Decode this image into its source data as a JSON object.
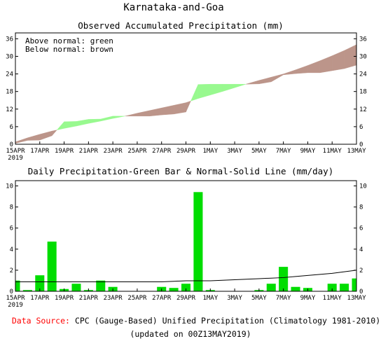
{
  "title": "Karnataka-and-Goa",
  "footer": {
    "source_label": "Data Source:",
    "source_text": "CPC (Gauge-Based) Unified Precipitation (Climatology 1981-2010)",
    "updated": "(updated on 00Z13MAY2019)"
  },
  "colors": {
    "above_normal": "#98f98f",
    "below_normal": "#bc958a",
    "bar": "#00dd00",
    "normal_line": "#000000",
    "source_label": "#ff0000"
  },
  "chart_data": [
    {
      "type": "area",
      "title": "Observed Accumulated Precipitation (mm)",
      "legend": [
        "Above normal: green",
        "Below normal: brown"
      ],
      "legend_placement": "top-left",
      "x": [
        "15APR",
        "16APR",
        "17APR",
        "18APR",
        "19APR",
        "20APR",
        "21APR",
        "22APR",
        "23APR",
        "24APR",
        "25APR",
        "26APR",
        "27APR",
        "28APR",
        "29APR",
        "30APR",
        "1MAY",
        "2MAY",
        "3MAY",
        "4MAY",
        "5MAY",
        "6MAY",
        "7MAY",
        "8MAY",
        "9MAY",
        "10MAY",
        "11MAY",
        "12MAY",
        "13MAY"
      ],
      "x_tick_labels": [
        "15APR",
        "17APR",
        "19APR",
        "21APR",
        "23APR",
        "25APR",
        "27APR",
        "29APR",
        "1MAY",
        "3MAY",
        "5MAY",
        "7MAY",
        "9MAY",
        "11MAY",
        "13MAY"
      ],
      "x_year_label": "2019",
      "ylim": [
        0,
        38
      ],
      "y_ticks": [
        0,
        6,
        12,
        18,
        24,
        30,
        36
      ],
      "series": [
        {
          "name": "observed",
          "values": [
            0.3,
            1.3,
            1.4,
            2.9,
            7.7,
            7.8,
            8.5,
            8.6,
            9.6,
            9.6,
            9.6,
            9.6,
            10.0,
            10.3,
            11.0,
            20.4,
            20.5,
            20.5,
            20.5,
            20.5,
            20.6,
            21.3,
            23.7,
            24.1,
            24.4,
            24.4,
            25.1,
            25.8,
            27.0
          ]
        },
        {
          "name": "normal",
          "values": [
            0.8,
            2.2,
            3.4,
            4.5,
            5.4,
            6.2,
            7.1,
            7.9,
            8.8,
            9.6,
            10.6,
            11.5,
            12.4,
            13.3,
            14.2,
            15.6,
            16.8,
            18.0,
            19.3,
            20.6,
            21.8,
            22.9,
            24.0,
            25.4,
            26.9,
            28.5,
            30.2,
            32.0,
            34.0
          ]
        }
      ]
    },
    {
      "type": "bar",
      "title": "Daily Precipitation-Green Bar & Normal-Solid Line (mm/day)",
      "x": [
        "15APR",
        "16APR",
        "17APR",
        "18APR",
        "19APR",
        "20APR",
        "21APR",
        "22APR",
        "23APR",
        "24APR",
        "25APR",
        "26APR",
        "27APR",
        "28APR",
        "29APR",
        "30APR",
        "1MAY",
        "2MAY",
        "3MAY",
        "4MAY",
        "5MAY",
        "6MAY",
        "7MAY",
        "8MAY",
        "9MAY",
        "10MAY",
        "11MAY",
        "12MAY",
        "13MAY"
      ],
      "x_tick_labels": [
        "15APR",
        "17APR",
        "19APR",
        "21APR",
        "23APR",
        "25APR",
        "27APR",
        "29APR",
        "1MAY",
        "3MAY",
        "5MAY",
        "7MAY",
        "9MAY",
        "11MAY",
        "13MAY"
      ],
      "x_year_label": "2019",
      "ylim": [
        0,
        10.5
      ],
      "y_ticks": [
        0,
        2,
        4,
        6,
        8,
        10
      ],
      "series": [
        {
          "name": "daily",
          "values": [
            1.0,
            0.1,
            1.5,
            4.7,
            0.2,
            0.7,
            0.1,
            1.0,
            0.4,
            0.0,
            0.0,
            0.0,
            0.4,
            0.3,
            0.7,
            9.4,
            0.1,
            0.0,
            0.0,
            0.0,
            0.1,
            0.7,
            2.3,
            0.4,
            0.3,
            0.0,
            0.7,
            0.7,
            1.2
          ]
        },
        {
          "name": "normal",
          "values": [
            0.9,
            0.9,
            0.9,
            0.9,
            0.9,
            0.9,
            0.9,
            0.9,
            0.9,
            0.9,
            0.9,
            0.9,
            0.9,
            0.95,
            1.0,
            1.0,
            1.0,
            1.05,
            1.1,
            1.15,
            1.2,
            1.25,
            1.3,
            1.4,
            1.5,
            1.6,
            1.7,
            1.85,
            2.0
          ]
        }
      ]
    }
  ]
}
